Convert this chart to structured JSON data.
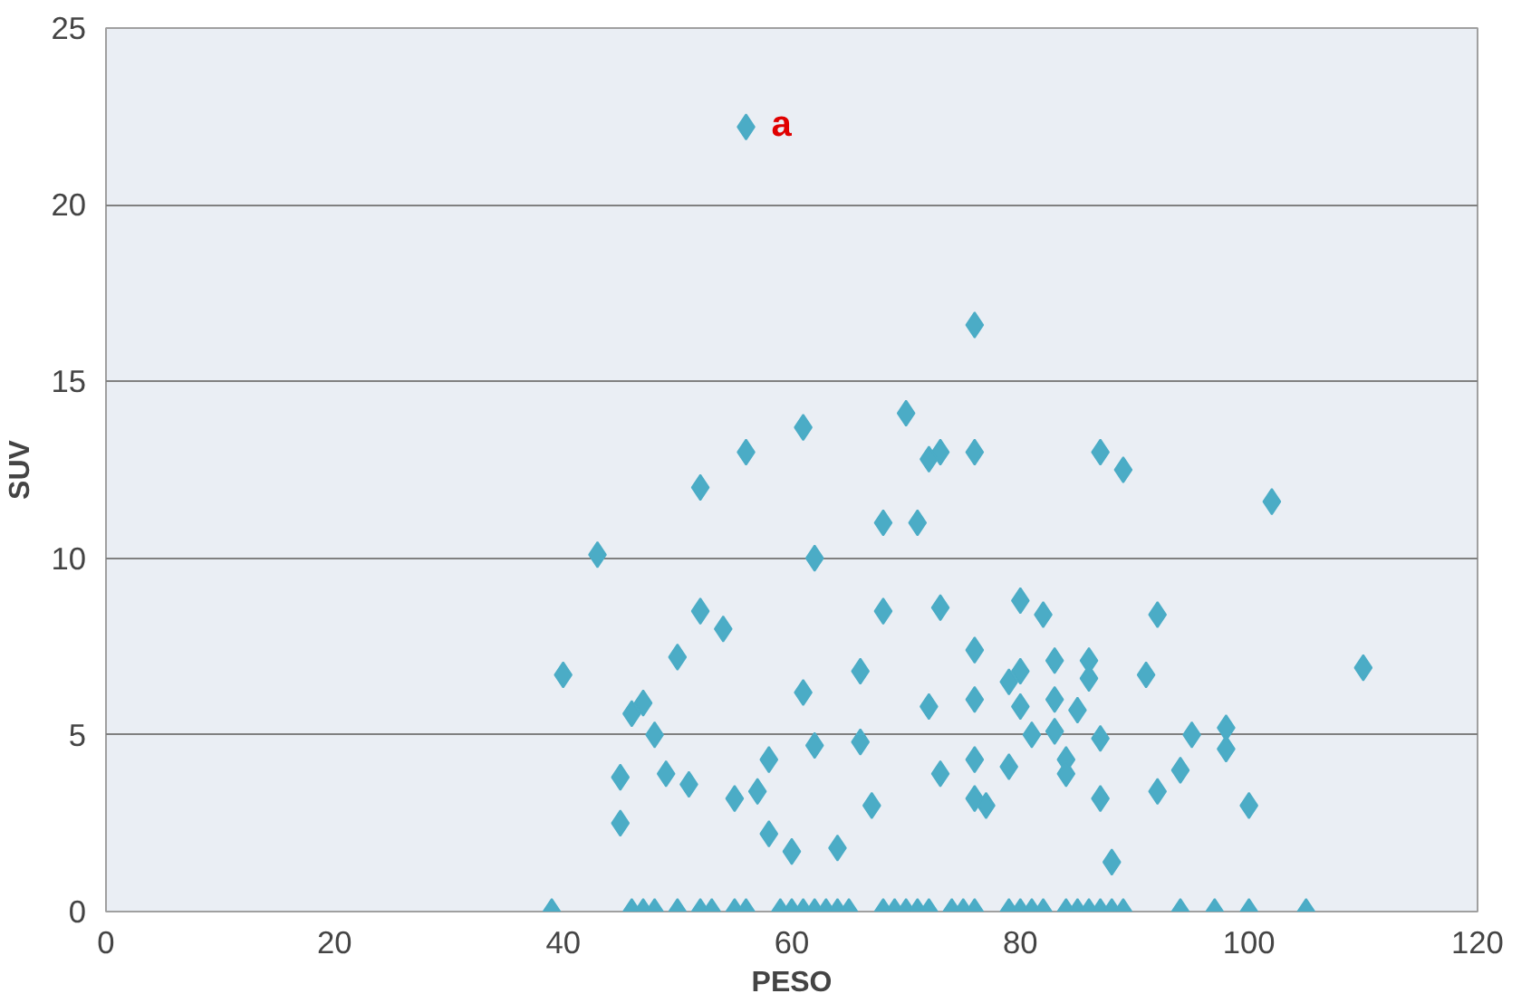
{
  "chart_data": {
    "type": "scatter",
    "xlabel": "PESO",
    "ylabel": "SUV",
    "marker": "diamond",
    "grid": "y",
    "xlim": [
      0,
      120
    ],
    "ylim": [
      0,
      25
    ],
    "xticks": [
      0,
      20,
      40,
      60,
      80,
      100,
      120
    ],
    "yticks": [
      0,
      5,
      10,
      15,
      20,
      25
    ],
    "annotations": [
      {
        "text": "a",
        "x": 56,
        "y": 22.2
      }
    ],
    "series": [
      {
        "color": "#4bacc6",
        "x": [
          56,
          76,
          70,
          61,
          56,
          73,
          76,
          72,
          87,
          89,
          52,
          102,
          68,
          71,
          43,
          62,
          80,
          82,
          52,
          68,
          73,
          92,
          54,
          76,
          50,
          83,
          86,
          110,
          40,
          66,
          80,
          79,
          86,
          91,
          61,
          47,
          46,
          72,
          80,
          85,
          83,
          76,
          48,
          62,
          66,
          81,
          83,
          87,
          95,
          98,
          98,
          45,
          49,
          51,
          58,
          73,
          76,
          79,
          84,
          84,
          94,
          55,
          57,
          67,
          76,
          77,
          87,
          92,
          100,
          45,
          58,
          60,
          64,
          88,
          39,
          46,
          47,
          48,
          50,
          52,
          53,
          55,
          56,
          59,
          60,
          61,
          62,
          63,
          64,
          65,
          68,
          69,
          70,
          71,
          72,
          74,
          75,
          76,
          79,
          80,
          81,
          82,
          84,
          85,
          86,
          87,
          88,
          89,
          94,
          97,
          100,
          105
        ],
        "values": [
          22.2,
          16.6,
          14.1,
          13.7,
          13.0,
          13.0,
          13.0,
          12.8,
          13.0,
          12.5,
          12.0,
          11.6,
          11.0,
          11.0,
          10.1,
          10.0,
          8.8,
          8.4,
          8.5,
          8.5,
          8.6,
          8.4,
          8.0,
          7.4,
          7.2,
          7.1,
          7.1,
          6.9,
          6.7,
          6.8,
          6.8,
          6.5,
          6.6,
          6.7,
          6.2,
          5.9,
          5.6,
          5.8,
          5.8,
          5.7,
          6.0,
          6.0,
          5.0,
          4.7,
          4.8,
          5.0,
          5.1,
          4.9,
          5.0,
          5.2,
          4.6,
          3.8,
          3.9,
          3.6,
          4.3,
          3.9,
          4.3,
          4.1,
          4.3,
          3.9,
          4.0,
          3.2,
          3.4,
          3.0,
          3.2,
          3.0,
          3.2,
          3.4,
          3.0,
          2.5,
          2.2,
          1.7,
          1.8,
          1.4,
          0,
          0,
          0,
          0,
          0,
          0,
          0,
          0,
          0,
          0,
          0,
          0,
          0,
          0,
          0,
          0,
          0,
          0,
          0,
          0,
          0,
          0,
          0,
          0,
          0,
          0,
          0,
          0,
          0,
          0,
          0,
          0,
          0,
          0,
          0,
          0,
          0,
          0
        ]
      }
    ]
  }
}
